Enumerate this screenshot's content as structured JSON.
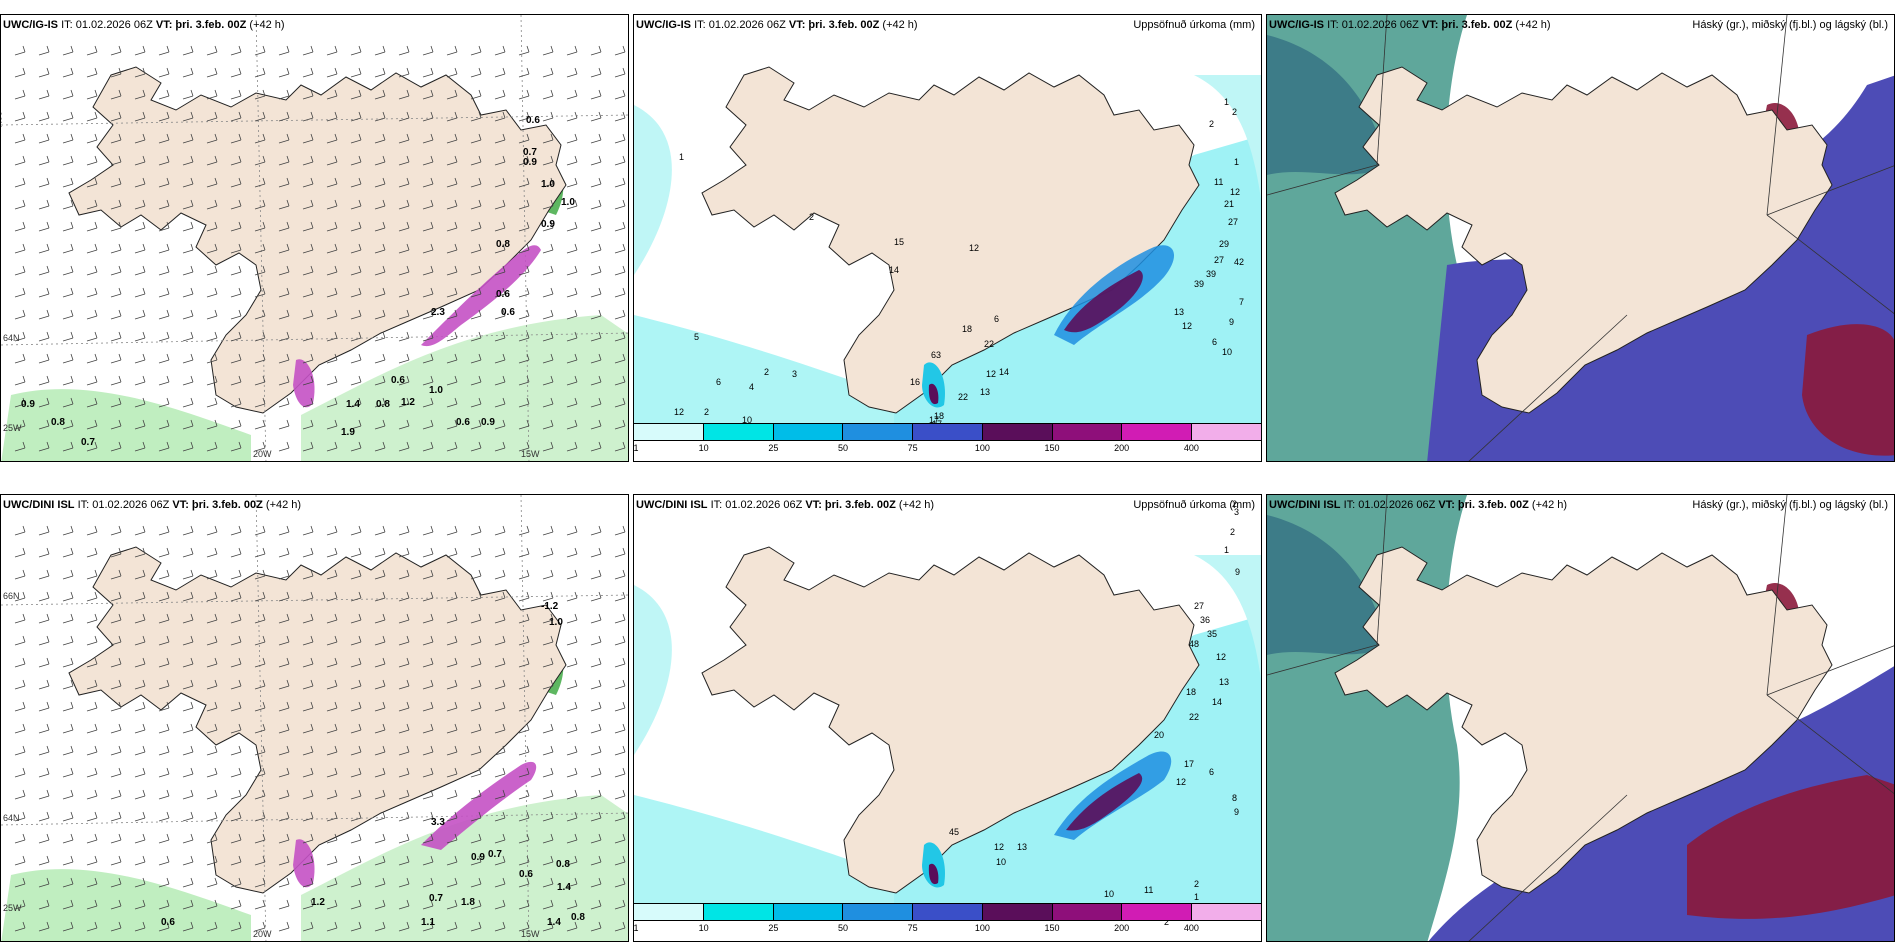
{
  "panels": [
    {
      "title_model": "UWC/IG-IS",
      "it": "IT: 01.02.2026 06Z",
      "vt_label": "VT:",
      "vt": "þri. 3.feb. 00Z",
      "lead": "(+42 h)",
      "right": "",
      "kind": "wind",
      "labels": [
        "0.6",
        "0.7",
        "0.9",
        "1.0",
        "0.8",
        "2.3",
        "0.6",
        "0.6",
        "0.9",
        "1.0",
        "0.6",
        "1.4",
        "0.8",
        "1.2",
        "1.0",
        "0.6",
        "0.9",
        "0.9",
        "0.8",
        "0.7",
        "1.9"
      ]
    },
    {
      "title_model": "UWC/IG-IS",
      "it": "IT: 01.02.2026 06Z",
      "vt_label": "VT:",
      "vt": "þri. 3.feb. 00Z",
      "lead": "(+42 h)",
      "right": "Uppsöfnuð úrkoma (mm)",
      "kind": "precip",
      "labels": [
        "1",
        "2",
        "2",
        "1",
        "11",
        "12",
        "21",
        "27",
        "29",
        "27",
        "39",
        "42",
        "39",
        "13",
        "12",
        "15",
        "14",
        "12",
        "2",
        "1",
        "18",
        "22",
        "63",
        "16",
        "17",
        "22",
        "13",
        "12",
        "14",
        "6",
        "7",
        "9",
        "6",
        "10",
        "12",
        "5",
        "5",
        "2",
        "4",
        "2",
        "3",
        "6",
        "10",
        "17",
        "18"
      ]
    },
    {
      "title_model": "UWC/IG-IS",
      "it": "IT: 01.02.2026 06Z",
      "vt_label": "VT:",
      "vt": "þri. 3.feb. 00Z",
      "lead": "(+42 h)",
      "right": "Háský (gr.), miðský (fj.bl.) og lágský (bl.)",
      "kind": "cloud"
    },
    {
      "title_model": "UWC/DINI ISL",
      "it": "IT: 01.02.2026 06Z",
      "vt_label": "VT:",
      "vt": "þri. 3.feb. 00Z",
      "lead": "(+42 h)",
      "right": "",
      "kind": "wind",
      "labels": [
        "-1.2",
        "1.0",
        "3.3",
        "0.9",
        "0.7",
        "0.6",
        "0.8",
        "1.4",
        "0.7",
        "1.8",
        "1.1",
        "1.4",
        "0.8",
        "0.6",
        "1.2"
      ]
    },
    {
      "title_model": "UWC/DINI ISL",
      "it": "IT: 01.02.2026 06Z",
      "vt_label": "VT:",
      "vt": "þri. 3.feb. 00Z",
      "lead": "(+42 h)",
      "right": "Uppsöfnuð úrkoma (mm)",
      "kind": "precip",
      "labels": [
        "2",
        "3",
        "2",
        "1",
        "9",
        "27",
        "36",
        "35",
        "48",
        "12",
        "13",
        "18",
        "14",
        "22",
        "20",
        "17",
        "12",
        "45",
        "6",
        "12",
        "13",
        "10",
        "10",
        "11",
        "2",
        "3",
        "2",
        "1",
        "8",
        "9"
      ]
    },
    {
      "title_model": "UWC/DINI ISL",
      "it": "IT: 01.02.2026 06Z",
      "vt_label": "VT:",
      "vt": "þri. 3.feb. 00Z",
      "lead": "(+42 h)",
      "right": "Háský (gr.), miðský (fj.bl.) og lágský (bl.)",
      "kind": "cloud"
    }
  ],
  "axis_labels": {
    "lat66": "66N",
    "lat64": "64N",
    "lon20": "20W",
    "lon15": "15W",
    "lon25": "25W"
  },
  "legend": {
    "ticks": [
      "1",
      "10",
      "25",
      "50",
      "75",
      "100",
      "150",
      "200",
      "400"
    ],
    "colors": [
      "#d7fbfb",
      "#00e5e5",
      "#00bde8",
      "#1f8fe0",
      "#3a4fc8",
      "#5a0e5a",
      "#8e0f7a",
      "#d11cb4",
      "#f2aeea"
    ]
  },
  "colors": {
    "land": "#f3e4d6",
    "sea_wind": "#ffffff",
    "precip_light": "#a7f5f5",
    "precip_mid": "#22c7e6",
    "cloud_high": "#4d4cb6",
    "cloud_mid": "#2f7f7f",
    "cloud_low": "#8b1a3b"
  }
}
